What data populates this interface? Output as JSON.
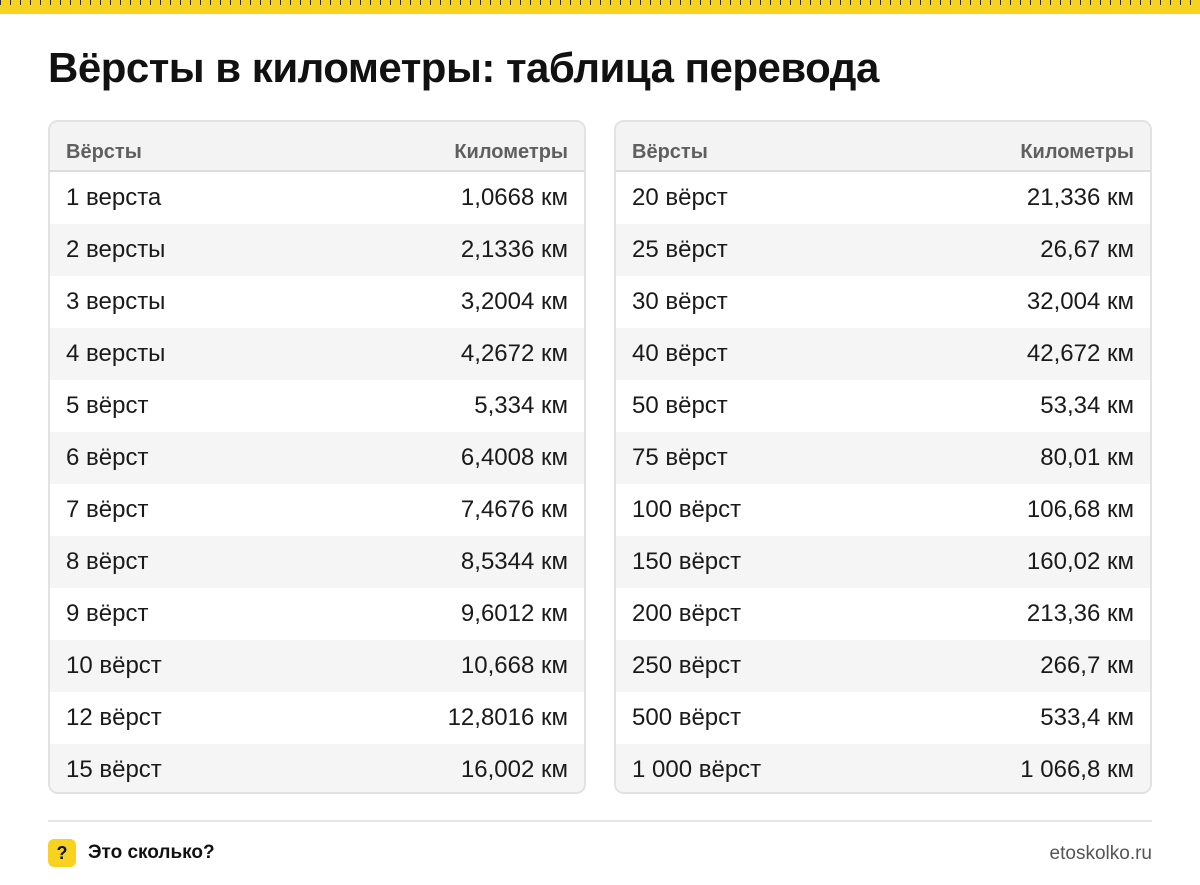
{
  "title": "Вёрсты в километры: таблица перевода",
  "tables": [
    {
      "headers": {
        "versts": "Вёрсты",
        "km": "Километры"
      },
      "rows": [
        {
          "versts": "1 верста",
          "km": "1,0668 км"
        },
        {
          "versts": "2 версты",
          "km": "2,1336 км"
        },
        {
          "versts": "3 версты",
          "km": "3,2004 км"
        },
        {
          "versts": "4 версты",
          "km": "4,2672 км"
        },
        {
          "versts": "5 вёрст",
          "km": "5,334 км"
        },
        {
          "versts": "6 вёрст",
          "km": "6,4008 км"
        },
        {
          "versts": "7 вёрст",
          "km": "7,4676 км"
        },
        {
          "versts": "8 вёрст",
          "km": "8,5344 км"
        },
        {
          "versts": "9 вёрст",
          "km": "9,6012 км"
        },
        {
          "versts": "10 вёрст",
          "km": "10,668 км"
        },
        {
          "versts": "12 вёрст",
          "km": "12,8016 км"
        },
        {
          "versts": "15 вёрст",
          "km": "16,002 км"
        }
      ]
    },
    {
      "headers": {
        "versts": "Вёрсты",
        "km": "Километры"
      },
      "rows": [
        {
          "versts": "20 вёрст",
          "km": "21,336 км"
        },
        {
          "versts": "25 вёрст",
          "km": "26,67 км"
        },
        {
          "versts": "30 вёрст",
          "km": "32,004 км"
        },
        {
          "versts": "40 вёрст",
          "km": "42,672 км"
        },
        {
          "versts": "50 вёрст",
          "km": "53,34 км"
        },
        {
          "versts": "75 вёрст",
          "km": "80,01 км"
        },
        {
          "versts": "100 вёрст",
          "km": "106,68 км"
        },
        {
          "versts": "150 вёрст",
          "km": "160,02 км"
        },
        {
          "versts": "200 вёрст",
          "km": "213,36 км"
        },
        {
          "versts": "250 вёрст",
          "km": "266,7 км"
        },
        {
          "versts": "500 вёрст",
          "km": "533,4 км"
        },
        {
          "versts": "1 000 вёрст",
          "km": "1 066,8 км"
        }
      ]
    }
  ],
  "footer": {
    "logo_glyph": "?",
    "brand": "Это сколько?",
    "site": "etoskolko.ru"
  },
  "colors": {
    "accent": "#f7d21e",
    "header_bg": "#f3f3f3",
    "stripe_bg": "#f5f5f5"
  }
}
